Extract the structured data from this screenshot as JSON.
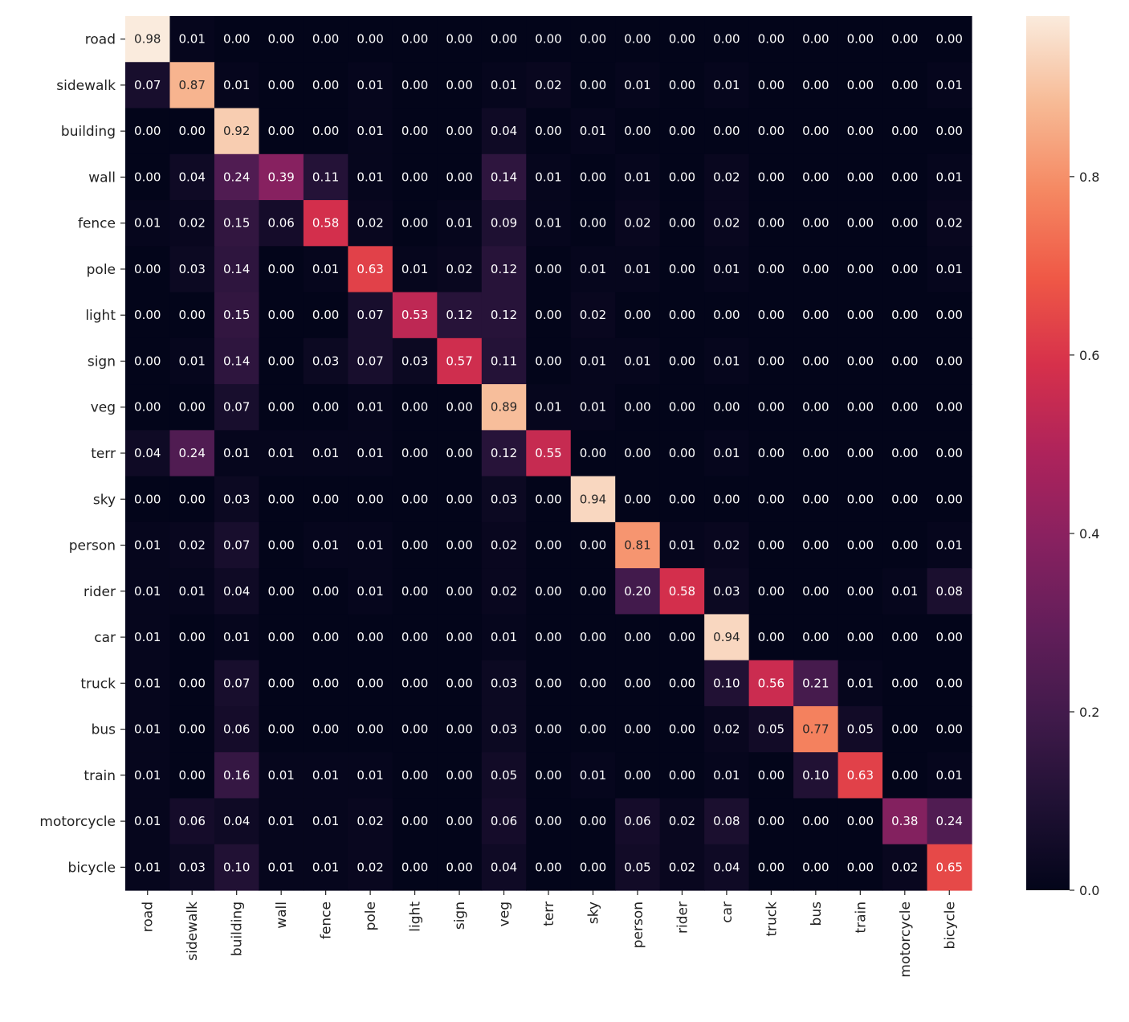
{
  "chart_data": {
    "type": "heatmap",
    "title": "",
    "xlabel": "",
    "ylabel": "",
    "colormap": "rocket",
    "vmin": 0.0,
    "vmax": 0.98,
    "colorbar_ticks": [
      0.0,
      0.2,
      0.4,
      0.6,
      0.8
    ],
    "colorbar_tick_labels": [
      "0.0",
      "0.2",
      "0.4",
      "0.6",
      "0.8"
    ],
    "row_labels": [
      "road",
      "sidewalk",
      "building",
      "wall",
      "fence",
      "pole",
      "light",
      "sign",
      "veg",
      "terr",
      "sky",
      "person",
      "rider",
      "car",
      "truck",
      "bus",
      "train",
      "motorcycle",
      "bicycle"
    ],
    "col_labels": [
      "road",
      "sidewalk",
      "building",
      "wall",
      "fence",
      "pole",
      "light",
      "sign",
      "veg",
      "terr",
      "sky",
      "person",
      "rider",
      "car",
      "truck",
      "bus",
      "train",
      "motorcycle",
      "bicycle"
    ],
    "values": [
      [
        0.98,
        0.01,
        0.0,
        0.0,
        0.0,
        0.0,
        0.0,
        0.0,
        0.0,
        0.0,
        0.0,
        0.0,
        0.0,
        0.0,
        0.0,
        0.0,
        0.0,
        0.0,
        0.0
      ],
      [
        0.07,
        0.87,
        0.01,
        0.0,
        0.0,
        0.01,
        0.0,
        0.0,
        0.01,
        0.02,
        0.0,
        0.01,
        0.0,
        0.01,
        0.0,
        0.0,
        0.0,
        0.0,
        0.01
      ],
      [
        0.0,
        0.0,
        0.92,
        0.0,
        0.0,
        0.01,
        0.0,
        0.0,
        0.04,
        0.0,
        0.01,
        0.0,
        0.0,
        0.0,
        0.0,
        0.0,
        0.0,
        0.0,
        0.0
      ],
      [
        0.0,
        0.04,
        0.24,
        0.39,
        0.11,
        0.01,
        0.0,
        0.0,
        0.14,
        0.01,
        0.0,
        0.01,
        0.0,
        0.02,
        0.0,
        0.0,
        0.0,
        0.0,
        0.01
      ],
      [
        0.01,
        0.02,
        0.15,
        0.06,
        0.58,
        0.02,
        0.0,
        0.01,
        0.09,
        0.01,
        0.0,
        0.02,
        0.0,
        0.02,
        0.0,
        0.0,
        0.0,
        0.0,
        0.02
      ],
      [
        0.0,
        0.03,
        0.14,
        0.0,
        0.01,
        0.63,
        0.01,
        0.02,
        0.12,
        0.0,
        0.01,
        0.01,
        0.0,
        0.01,
        0.0,
        0.0,
        0.0,
        0.0,
        0.01
      ],
      [
        0.0,
        0.0,
        0.15,
        0.0,
        0.0,
        0.07,
        0.53,
        0.12,
        0.12,
        0.0,
        0.02,
        0.0,
        0.0,
        0.0,
        0.0,
        0.0,
        0.0,
        0.0,
        0.0
      ],
      [
        0.0,
        0.01,
        0.14,
        0.0,
        0.03,
        0.07,
        0.03,
        0.57,
        0.11,
        0.0,
        0.01,
        0.01,
        0.0,
        0.01,
        0.0,
        0.0,
        0.0,
        0.0,
        0.0
      ],
      [
        0.0,
        0.0,
        0.07,
        0.0,
        0.0,
        0.01,
        0.0,
        0.0,
        0.89,
        0.01,
        0.01,
        0.0,
        0.0,
        0.0,
        0.0,
        0.0,
        0.0,
        0.0,
        0.0
      ],
      [
        0.04,
        0.24,
        0.01,
        0.01,
        0.01,
        0.01,
        0.0,
        0.0,
        0.12,
        0.55,
        0.0,
        0.0,
        0.0,
        0.01,
        0.0,
        0.0,
        0.0,
        0.0,
        0.0
      ],
      [
        0.0,
        0.0,
        0.03,
        0.0,
        0.0,
        0.0,
        0.0,
        0.0,
        0.03,
        0.0,
        0.94,
        0.0,
        0.0,
        0.0,
        0.0,
        0.0,
        0.0,
        0.0,
        0.0
      ],
      [
        0.01,
        0.02,
        0.07,
        0.0,
        0.01,
        0.01,
        0.0,
        0.0,
        0.02,
        0.0,
        0.0,
        0.81,
        0.01,
        0.02,
        0.0,
        0.0,
        0.0,
        0.0,
        0.01
      ],
      [
        0.01,
        0.01,
        0.04,
        0.0,
        0.0,
        0.01,
        0.0,
        0.0,
        0.02,
        0.0,
        0.0,
        0.2,
        0.58,
        0.03,
        0.0,
        0.0,
        0.0,
        0.01,
        0.08
      ],
      [
        0.01,
        0.0,
        0.01,
        0.0,
        0.0,
        0.0,
        0.0,
        0.0,
        0.01,
        0.0,
        0.0,
        0.0,
        0.0,
        0.94,
        0.0,
        0.0,
        0.0,
        0.0,
        0.0
      ],
      [
        0.01,
        0.0,
        0.07,
        0.0,
        0.0,
        0.0,
        0.0,
        0.0,
        0.03,
        0.0,
        0.0,
        0.0,
        0.0,
        0.1,
        0.56,
        0.21,
        0.01,
        0.0,
        0.0
      ],
      [
        0.01,
        0.0,
        0.06,
        0.0,
        0.0,
        0.0,
        0.0,
        0.0,
        0.03,
        0.0,
        0.0,
        0.0,
        0.0,
        0.02,
        0.05,
        0.77,
        0.05,
        0.0,
        0.0
      ],
      [
        0.01,
        0.0,
        0.16,
        0.01,
        0.01,
        0.01,
        0.0,
        0.0,
        0.05,
        0.0,
        0.01,
        0.0,
        0.0,
        0.01,
        0.0,
        0.1,
        0.63,
        0.0,
        0.01
      ],
      [
        0.01,
        0.06,
        0.04,
        0.01,
        0.01,
        0.02,
        0.0,
        0.0,
        0.06,
        0.0,
        0.0,
        0.06,
        0.02,
        0.08,
        0.0,
        0.0,
        0.0,
        0.38,
        0.24
      ],
      [
        0.01,
        0.03,
        0.1,
        0.01,
        0.01,
        0.02,
        0.0,
        0.0,
        0.04,
        0.0,
        0.0,
        0.05,
        0.02,
        0.04,
        0.0,
        0.0,
        0.0,
        0.02,
        0.65
      ]
    ]
  }
}
